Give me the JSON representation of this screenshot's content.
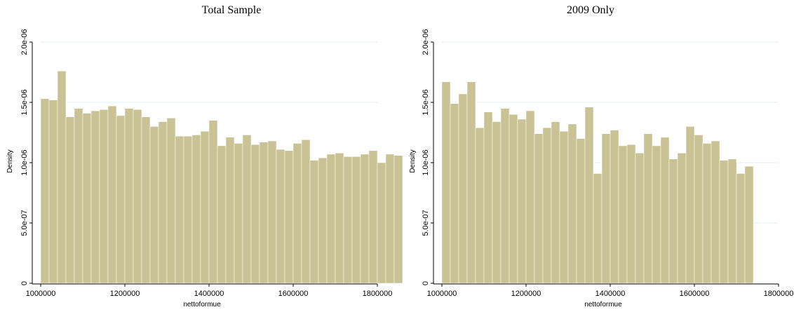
{
  "colors": {
    "bar": "#c9c294",
    "bar_edge": "#ffffff",
    "plot_bg": "#ffffff",
    "grid": "#eaf2f3",
    "axis": "#000000"
  },
  "chart_data": [
    {
      "type": "bar",
      "title": "Total Sample",
      "xlabel": "nettoformue",
      "ylabel": "Density",
      "xlim": [
        1000000,
        1800000
      ],
      "ylim": [
        0,
        2e-06
      ],
      "bin_width": 20000,
      "x_ticks": [
        1000000,
        1200000,
        1400000,
        1600000,
        1800000
      ],
      "x_tick_labels": [
        "1000000",
        "1200000",
        "1400000",
        "1600000",
        "1800000"
      ],
      "y_ticks": [
        0,
        5e-07,
        1e-06,
        1.5e-06,
        2e-06
      ],
      "y_tick_labels": [
        "0",
        "5.0e-07",
        "1.0e-06",
        "1.5e-06",
        "2.0e-06"
      ],
      "grid": true,
      "values": [
        1.53e-06,
        1.52e-06,
        1.76e-06,
        1.38e-06,
        1.45e-06,
        1.41e-06,
        1.43e-06,
        1.44e-06,
        1.47e-06,
        1.39e-06,
        1.45e-06,
        1.44e-06,
        1.38e-06,
        1.3e-06,
        1.34e-06,
        1.37e-06,
        1.22e-06,
        1.22e-06,
        1.23e-06,
        1.26e-06,
        1.35e-06,
        1.14e-06,
        1.21e-06,
        1.16e-06,
        1.23e-06,
        1.15e-06,
        1.17e-06,
        1.18e-06,
        1.11e-06,
        1.1e-06,
        1.16e-06,
        1.19e-06,
        1.02e-06,
        1.04e-06,
        1.07e-06,
        1.08e-06,
        1.05e-06,
        1.05e-06,
        1.07e-06,
        1.1e-06,
        1e-06,
        1.07e-06,
        1.06e-06
      ]
    },
    {
      "type": "bar",
      "title": "2009 Only",
      "xlabel": "nettoformue",
      "ylabel": "Density",
      "xlim": [
        1000000,
        1800000
      ],
      "ylim": [
        0,
        2e-06
      ],
      "bin_width": 20000,
      "x_ticks": [
        1000000,
        1200000,
        1400000,
        1600000,
        1800000
      ],
      "x_tick_labels": [
        "1000000",
        "1200000",
        "1400000",
        "1600000",
        "1800000"
      ],
      "y_ticks": [
        0,
        5e-07,
        1e-06,
        1.5e-06,
        2e-06
      ],
      "y_tick_labels": [
        "0",
        "5.0e-07",
        "1.0e-06",
        "1.5e-06",
        "2.0e-06"
      ],
      "grid": true,
      "values": [
        1.67e-06,
        1.49e-06,
        1.57e-06,
        1.67e-06,
        1.29e-06,
        1.42e-06,
        1.34e-06,
        1.45e-06,
        1.4e-06,
        1.36e-06,
        1.43e-06,
        1.24e-06,
        1.29e-06,
        1.34e-06,
        1.26e-06,
        1.32e-06,
        1.2e-06,
        1.46e-06,
        9.1e-07,
        1.24e-06,
        1.27e-06,
        1.14e-06,
        1.15e-06,
        1.08e-06,
        1.24e-06,
        1.14e-06,
        1.21e-06,
        1.03e-06,
        1.08e-06,
        1.3e-06,
        1.23e-06,
        1.16e-06,
        1.18e-06,
        1.02e-06,
        1.03e-06,
        9.1e-07,
        9.7e-07
      ]
    }
  ]
}
